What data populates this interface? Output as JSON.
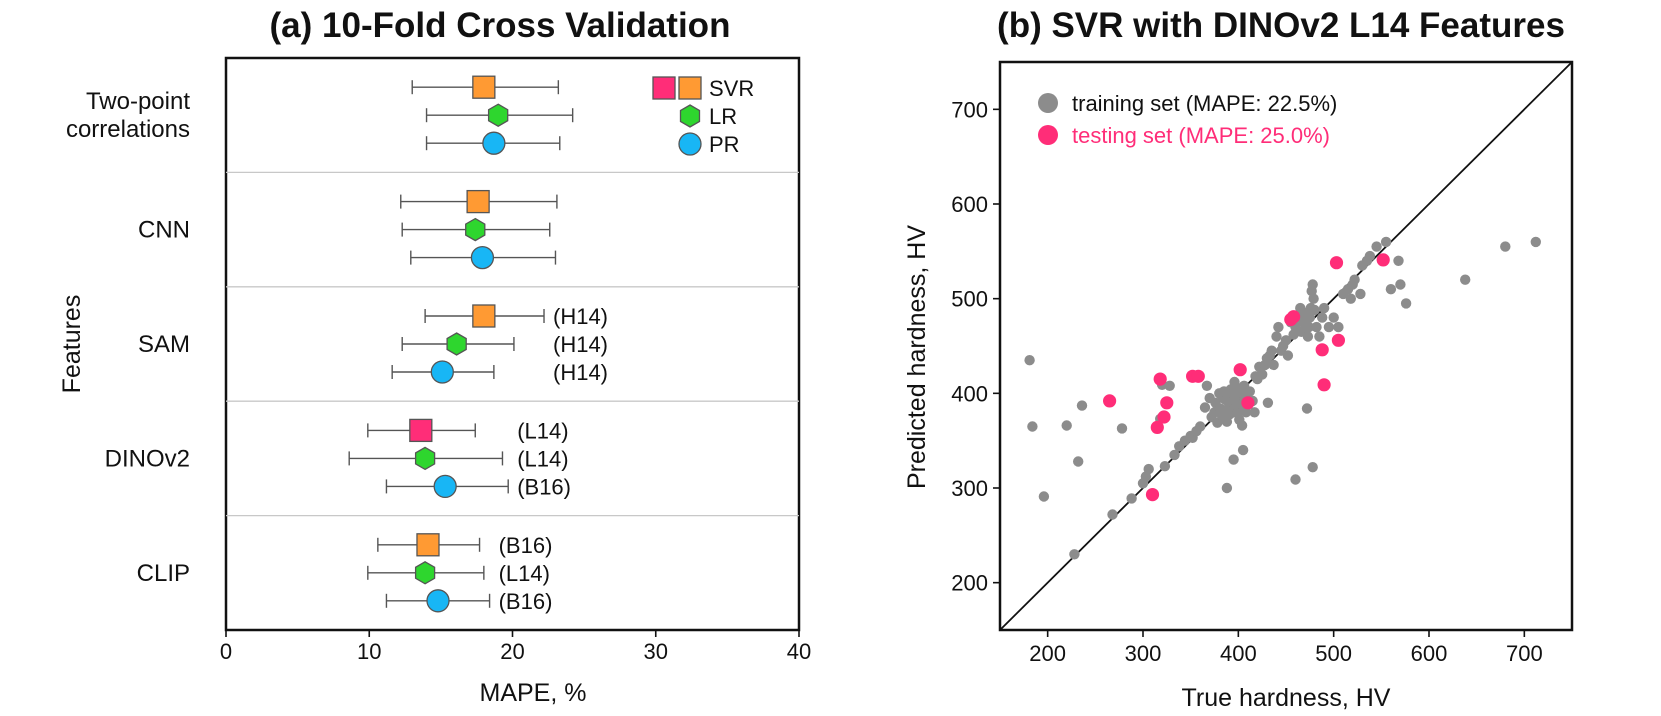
{
  "chart_data": [
    {
      "type": "scatter",
      "title": "(a) 10-Fold Cross Validation",
      "xlabel": "MAPE, %",
      "ylabel": "Features",
      "xlim": [
        0,
        40
      ],
      "xticks": [
        0,
        10,
        20,
        30,
        40
      ],
      "grid": false,
      "legend_position": "top-right",
      "legend": [
        {
          "key": "SVR",
          "label": "SVR",
          "marker": "square",
          "colors": [
            "#ff2d78",
            "#ff9a33"
          ]
        },
        {
          "key": "LR",
          "label": "LR",
          "marker": "hexagon",
          "colors": [
            "#2ed62e"
          ]
        },
        {
          "key": "PR",
          "label": "PR",
          "marker": "circle",
          "colors": [
            "#18b6f5"
          ]
        }
      ],
      "groups": [
        {
          "name": "Two-point correlations",
          "label_lines": [
            "Two-point",
            "correlations"
          ],
          "points": [
            {
              "model": "SVR",
              "mean": 18.0,
              "low": 13.0,
              "high": 23.2,
              "variant": "",
              "highlight": false
            },
            {
              "model": "LR",
              "mean": 19.0,
              "low": 14.0,
              "high": 24.2,
              "variant": ""
            },
            {
              "model": "PR",
              "mean": 18.7,
              "low": 14.0,
              "high": 23.3,
              "variant": ""
            }
          ]
        },
        {
          "name": "CNN",
          "label_lines": [
            "CNN"
          ],
          "points": [
            {
              "model": "SVR",
              "mean": 17.6,
              "low": 12.2,
              "high": 23.1,
              "variant": "",
              "highlight": false
            },
            {
              "model": "LR",
              "mean": 17.4,
              "low": 12.3,
              "high": 22.6,
              "variant": ""
            },
            {
              "model": "PR",
              "mean": 17.9,
              "low": 12.9,
              "high": 23.0,
              "variant": ""
            }
          ]
        },
        {
          "name": "SAM",
          "label_lines": [
            "SAM"
          ],
          "points": [
            {
              "model": "SVR",
              "mean": 18.0,
              "low": 13.9,
              "high": 22.2,
              "variant": "(H14)",
              "highlight": false
            },
            {
              "model": "LR",
              "mean": 16.1,
              "low": 12.3,
              "high": 20.1,
              "variant": "(H14)"
            },
            {
              "model": "PR",
              "mean": 15.1,
              "low": 11.6,
              "high": 18.7,
              "variant": "(H14)"
            }
          ]
        },
        {
          "name": "DINOv2",
          "label_lines": [
            "DINOv2"
          ],
          "points": [
            {
              "model": "SVR",
              "mean": 13.6,
              "low": 9.9,
              "high": 17.4,
              "variant": "(L14)",
              "highlight": true
            },
            {
              "model": "LR",
              "mean": 13.9,
              "low": 8.6,
              "high": 19.3,
              "variant": "(L14)"
            },
            {
              "model": "PR",
              "mean": 15.3,
              "low": 11.2,
              "high": 19.7,
              "variant": "(B16)"
            }
          ]
        },
        {
          "name": "CLIP",
          "label_lines": [
            "CLIP"
          ],
          "points": [
            {
              "model": "SVR",
              "mean": 14.1,
              "low": 10.6,
              "high": 17.7,
              "variant": "(B16)",
              "highlight": false
            },
            {
              "model": "LR",
              "mean": 13.9,
              "low": 9.9,
              "high": 18.0,
              "variant": "(L14)"
            },
            {
              "model": "PR",
              "mean": 14.8,
              "low": 11.2,
              "high": 18.4,
              "variant": "(B16)"
            }
          ]
        }
      ]
    },
    {
      "type": "scatter",
      "title": "(b) SVR with DINOv2 L14 Features",
      "xlabel": "True hardness, HV",
      "ylabel": "Predicted hardness, HV",
      "xlim": [
        150,
        750
      ],
      "ylim": [
        150,
        750
      ],
      "xticks": [
        200,
        300,
        400,
        500,
        600,
        700
      ],
      "yticks": [
        200,
        300,
        400,
        500,
        600,
        700
      ],
      "grid": false,
      "diagonal": true,
      "legend_position": "top-left",
      "series": [
        {
          "name": "training set (MAPE: 22.5%)",
          "color": "#8c8c8c",
          "x": [
            181,
            184,
            196,
            220,
            228,
            232,
            236,
            268,
            278,
            288,
            300,
            303,
            306,
            318,
            320,
            323,
            328,
            333,
            338,
            344,
            350,
            352,
            356,
            360,
            365,
            367,
            370,
            372,
            375,
            376,
            378,
            380,
            381,
            383,
            384,
            385,
            386,
            387,
            388,
            389,
            390,
            391,
            392,
            393,
            394,
            395,
            396,
            397,
            398,
            399,
            400,
            401,
            402,
            403,
            404,
            405,
            406,
            407,
            408,
            410,
            412,
            415,
            418,
            420,
            422,
            425,
            428,
            430,
            433,
            435,
            437,
            440,
            442,
            445,
            447,
            450,
            452,
            455,
            458,
            460,
            462,
            465,
            466,
            468,
            470,
            471,
            473,
            474,
            475,
            476,
            477,
            478,
            479,
            480,
            482,
            485,
            488,
            490,
            495,
            500,
            505,
            510,
            515,
            518,
            520,
            522,
            528,
            530,
            535,
            538,
            545,
            555,
            560,
            568,
            570,
            576,
            638,
            680,
            712,
            388,
            395,
            460,
            478,
            407,
            405,
            431,
            472,
            417
          ],
          "y": [
            435,
            365,
            291,
            366,
            230,
            328,
            387,
            272,
            363,
            289,
            305,
            312,
            320,
            373,
            409,
            323,
            408,
            335,
            344,
            350,
            355,
            353,
            360,
            365,
            385,
            408,
            395,
            375,
            380,
            390,
            369,
            400,
            384,
            376,
            395,
            402,
            382,
            393,
            370,
            398,
            385,
            378,
            404,
            391,
            400,
            383,
            412,
            394,
            387,
            379,
            405,
            372,
            392,
            399,
            366,
            386,
            408,
            395,
            380,
            390,
            402,
            392,
            418,
            415,
            428,
            420,
            430,
            437,
            440,
            445,
            430,
            460,
            470,
            445,
            450,
            456,
            440,
            475,
            462,
            470,
            480,
            490,
            465,
            475,
            485,
            470,
            460,
            470,
            480,
            490,
            508,
            515,
            500,
            488,
            470,
            460,
            480,
            490,
            470,
            480,
            470,
            505,
            510,
            500,
            515,
            520,
            505,
            535,
            540,
            545,
            555,
            560,
            510,
            540,
            515,
            495,
            520,
            555,
            560,
            300,
            330,
            309,
            322,
            395,
            340,
            390,
            384,
            380
          ],
          "marker": "circle"
        },
        {
          "name": "testing set (MAPE: 25.0%)",
          "color": "#ff2d78",
          "x": [
            265,
            310,
            315,
            318,
            322,
            325,
            352,
            358,
            402,
            410,
            455,
            458,
            488,
            490,
            503,
            505,
            552
          ],
          "y": [
            392,
            293,
            364,
            415,
            375,
            390,
            418,
            418,
            425,
            390,
            478,
            481,
            446,
            409,
            538,
            456,
            541
          ],
          "marker": "circle"
        }
      ]
    }
  ]
}
